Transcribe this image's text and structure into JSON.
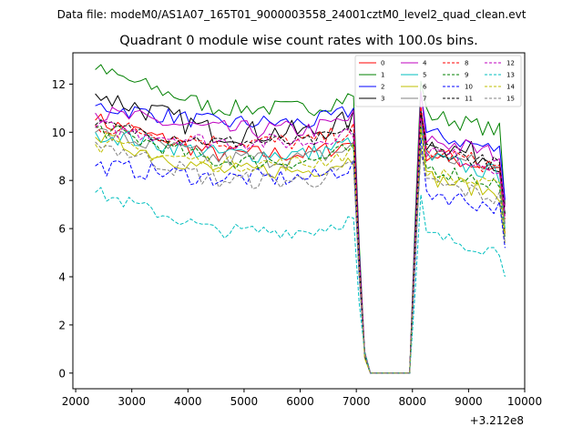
{
  "suptitle": "Data file: modeM0/AS1A07_165T01_9000003558_24001cztM0_level2_quad_clean.evt",
  "chart_data": {
    "type": "line",
    "title": "Quadrant 0 module wise count rates with 100.0s bins.",
    "xlabel": "",
    "ylabel": "",
    "x_offset_label": "+3.212e8",
    "xlim": [
      1950,
      10000
    ],
    "ylim": [
      -0.65,
      13.3
    ],
    "xticks": [
      2000,
      3000,
      4000,
      5000,
      6000,
      7000,
      8000,
      9000,
      10000
    ],
    "yticks": [
      0,
      2,
      4,
      6,
      8,
      10,
      12
    ],
    "grid": false,
    "legend_position": "top-right",
    "legend_columns": 4,
    "gap": {
      "drop_start": 7050,
      "zero_start": 7250,
      "zero_end": 7950,
      "rise_end": 8150
    },
    "x_start": 2350,
    "x_end": 9650,
    "step": 100,
    "series": [
      {
        "name": "0",
        "color": "#ff0000",
        "dash": "solid",
        "mean": 9.1,
        "start": 10.5,
        "post": 9.2,
        "end": 5.8,
        "amp": 0.38
      },
      {
        "name": "1",
        "color": "#008000",
        "dash": "solid",
        "mean": 11.0,
        "start": 12.6,
        "post": 10.8,
        "end": 7.0,
        "amp": 0.35
      },
      {
        "name": "2",
        "color": "#0000ff",
        "dash": "solid",
        "mean": 10.4,
        "start": 11.1,
        "post": 10.0,
        "end": 7.2,
        "amp": 0.35
      },
      {
        "name": "3",
        "color": "#000000",
        "dash": "solid",
        "mean": 10.0,
        "start": 11.6,
        "post": 9.6,
        "end": 6.6,
        "amp": 0.5
      },
      {
        "name": "4",
        "color": "#bf00bf",
        "dash": "solid",
        "mean": 10.1,
        "start": 10.8,
        "post": 9.8,
        "end": 6.9,
        "amp": 0.4
      },
      {
        "name": "5",
        "color": "#00bfbf",
        "dash": "solid",
        "mean": 9.1,
        "start": 10.0,
        "post": 9.0,
        "end": 6.0,
        "amp": 0.38
      },
      {
        "name": "6",
        "color": "#bfbf00",
        "dash": "solid",
        "mean": 8.4,
        "start": 9.8,
        "post": 8.2,
        "end": 5.4,
        "amp": 0.35
      },
      {
        "name": "7",
        "color": "#808080",
        "dash": "solid",
        "mean": 8.9,
        "start": 10.0,
        "post": 9.2,
        "end": 6.2,
        "amp": 0.4
      },
      {
        "name": "8",
        "color": "#ff0000",
        "dash": "dashed",
        "mean": 9.6,
        "start": 10.3,
        "post": 9.3,
        "end": 6.4,
        "amp": 0.38
      },
      {
        "name": "9",
        "color": "#008000",
        "dash": "dashed",
        "mean": 8.8,
        "start": 10.2,
        "post": 8.6,
        "end": 5.6,
        "amp": 0.35
      },
      {
        "name": "10",
        "color": "#0000ff",
        "dash": "dashed",
        "mean": 8.1,
        "start": 8.6,
        "post": 7.6,
        "end": 5.2,
        "amp": 0.38
      },
      {
        "name": "11",
        "color": "#000000",
        "dash": "dashed",
        "mean": 9.6,
        "start": 10.3,
        "post": 9.4,
        "end": 6.6,
        "amp": 0.3
      },
      {
        "name": "12",
        "color": "#bf00bf",
        "dash": "dashed",
        "mean": 9.6,
        "start": 10.2,
        "post": 9.3,
        "end": 6.5,
        "amp": 0.35
      },
      {
        "name": "13",
        "color": "#00bfbf",
        "dash": "dashed",
        "mean": 5.9,
        "start": 7.5,
        "post": 5.8,
        "end": 4.0,
        "amp": 0.3
      },
      {
        "name": "14",
        "color": "#bfbf00",
        "dash": "dashed",
        "mean": 8.7,
        "start": 9.5,
        "post": 8.4,
        "end": 5.8,
        "amp": 0.35
      },
      {
        "name": "15",
        "color": "#808080",
        "dash": "dashed",
        "mean": 8.0,
        "start": 9.6,
        "post": 8.0,
        "end": 5.4,
        "amp": 0.38
      }
    ]
  }
}
